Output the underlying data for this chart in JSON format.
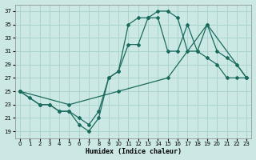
{
  "bg_color": "#cce8e4",
  "grid_color": "#aad4ce",
  "line_color": "#1a6b5e",
  "xlim": [
    -0.5,
    23.5
  ],
  "ylim": [
    18,
    38
  ],
  "yticks": [
    19,
    21,
    23,
    25,
    27,
    29,
    31,
    33,
    35,
    37
  ],
  "xticks": [
    0,
    1,
    2,
    3,
    4,
    5,
    6,
    7,
    8,
    9,
    10,
    11,
    12,
    13,
    14,
    15,
    16,
    17,
    18,
    19,
    20,
    21,
    22,
    23
  ],
  "xlabel": "Humidex (Indice chaleur)",
  "line1_x": [
    0,
    1,
    2,
    3,
    4,
    5,
    6,
    7,
    8,
    9,
    10,
    11,
    12,
    13,
    14,
    15,
    16,
    17,
    18,
    19,
    20,
    21,
    22,
    23
  ],
  "line1_y": [
    25,
    24,
    23,
    23,
    22,
    22,
    20,
    19,
    21,
    27,
    28,
    35,
    36,
    36,
    37,
    37,
    36,
    31,
    31,
    35,
    31,
    30,
    29,
    27
  ],
  "line2_x": [
    0,
    2,
    3,
    4,
    5,
    6,
    7,
    8,
    9,
    10,
    11,
    12,
    13,
    14,
    15,
    16,
    17,
    18,
    19,
    20,
    21,
    22,
    23
  ],
  "line2_y": [
    25,
    23,
    23,
    22,
    22,
    21,
    20,
    22,
    27,
    28,
    32,
    32,
    36,
    36,
    31,
    31,
    35,
    31,
    30,
    29,
    27,
    27,
    27
  ],
  "line3_x": [
    0,
    5,
    10,
    15,
    19,
    23
  ],
  "line3_y": [
    25,
    23,
    25,
    27,
    35,
    27
  ]
}
